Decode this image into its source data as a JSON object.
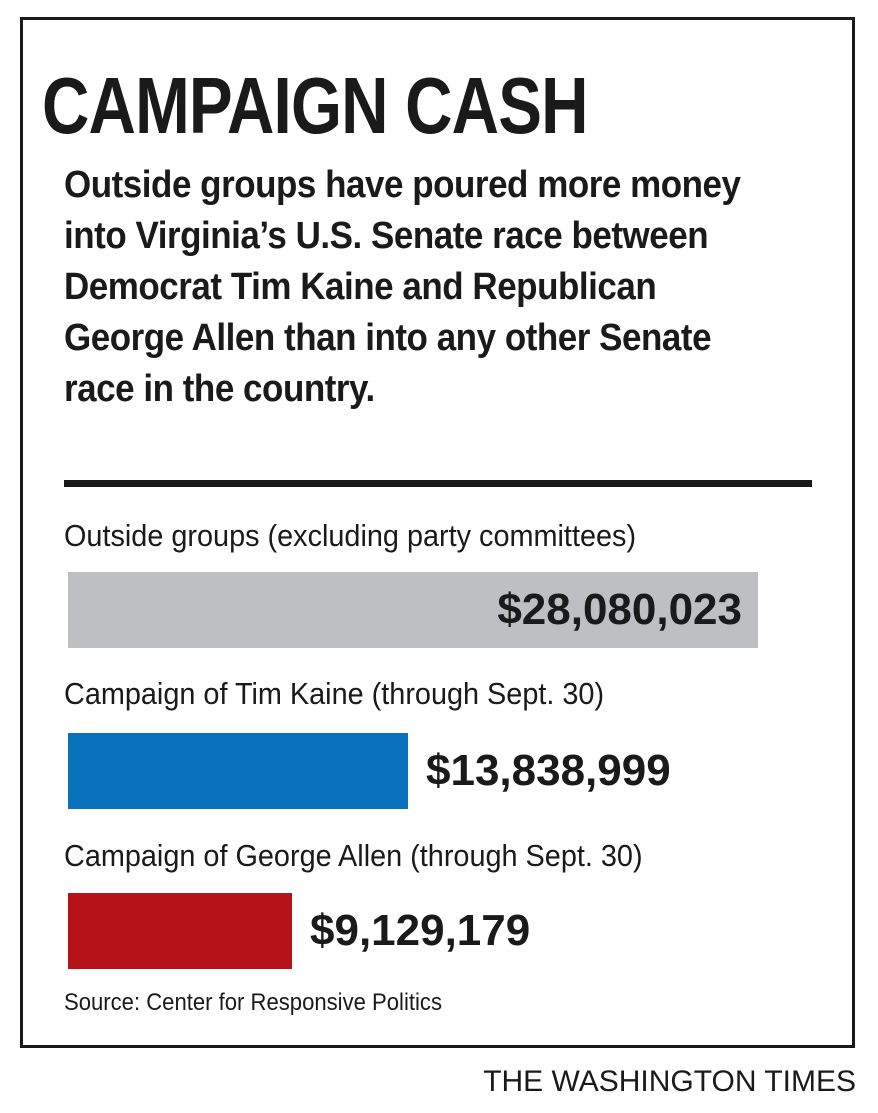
{
  "chart_data": {
    "type": "bar",
    "orientation": "horizontal",
    "title": "CAMPAIGN CASH",
    "subtitle": "Outside groups have poured more money into Virginia’s U.S. Senate race between Democrat Tim Kaine and Republican George Allen than into any other Senate race in the country.",
    "categories": [
      "Outside groups (excluding party committees)",
      "Campaign of Tim Kaine (through Sept. 30)",
      "Campaign of George Allen (through Sept. 30)"
    ],
    "values": [
      28080023,
      13838999,
      9129179
    ],
    "value_labels": [
      "$28,080,023",
      "$13,838,999",
      "$9,129,179"
    ],
    "colors": [
      "#bdbfc2",
      "#0a72bd",
      "#b51319"
    ],
    "xlim": [
      0,
      28080023
    ],
    "grid": false,
    "legend": "none"
  },
  "source": "Source: Center for Responsive Politics",
  "credit": "THE WASHINGTON TIMES"
}
